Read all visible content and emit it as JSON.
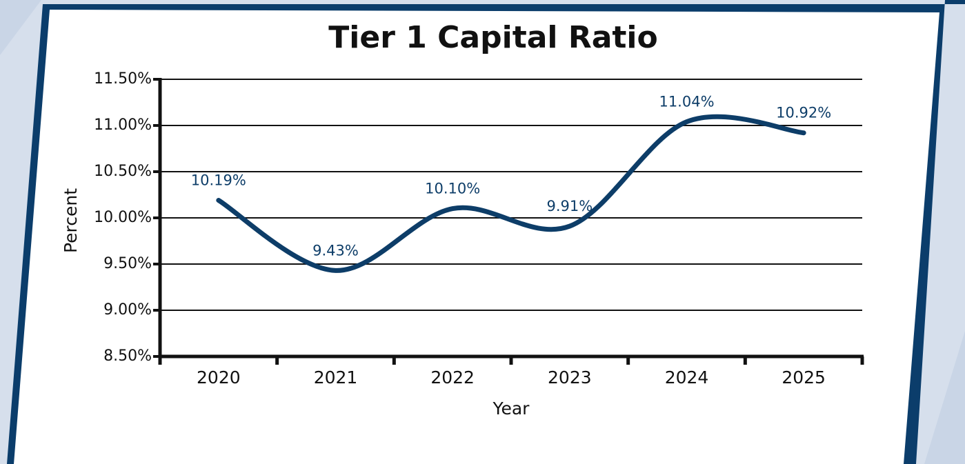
{
  "chart_data": {
    "type": "line",
    "title": "Tier 1 Capital Ratio",
    "x_label": "Year",
    "y_label": "Percent",
    "categories": [
      "2020",
      "2021",
      "2022",
      "2023",
      "2024",
      "2025"
    ],
    "values": [
      10.19,
      9.43,
      10.1,
      9.91,
      11.04,
      10.92
    ],
    "value_labels": [
      "10.19%",
      "9.43%",
      "10.10%",
      "9.91%",
      "11.04%",
      "10.92%"
    ],
    "color": "#0d3d68",
    "ylim": [
      8.5,
      11.5
    ],
    "yticks": [
      {
        "value": 8.5,
        "label": "8.50%"
      },
      {
        "value": 9.0,
        "label": "9.00%"
      },
      {
        "value": 9.5,
        "label": "9.50%"
      },
      {
        "value": 10.0,
        "label": "10.00%"
      },
      {
        "value": 10.5,
        "label": "10.50%"
      },
      {
        "value": 11.0,
        "label": "11.00%"
      },
      {
        "value": 11.5,
        "label": "11.50%"
      }
    ],
    "grid": true,
    "smooth": true
  }
}
